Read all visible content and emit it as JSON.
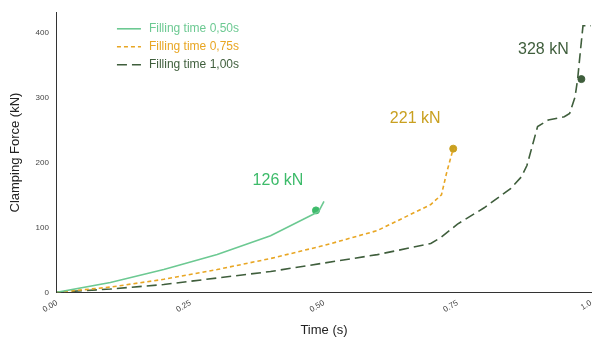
{
  "chart_data": {
    "type": "line",
    "x_label": "Time (s)",
    "y_label": "Clamping Force (kN)",
    "xlim": [
      0,
      1.0
    ],
    "ylim": [
      0,
      430
    ],
    "xticks": [
      {
        "value": 0,
        "label": "0.00"
      },
      {
        "value": 0.25,
        "label": "0.25"
      },
      {
        "value": 0.5,
        "label": "0.50"
      },
      {
        "value": 0.75,
        "label": "0.75"
      },
      {
        "value": 1.0,
        "label": "1.0"
      }
    ],
    "yticks": [
      0,
      100,
      200,
      300,
      400
    ],
    "grid": false,
    "legend": "upper left",
    "series": [
      {
        "name": "Filling time 0,50s",
        "color": "#6cc992",
        "line_style": "solid",
        "x": [
          0,
          0.1,
          0.2,
          0.3,
          0.4,
          0.48,
          0.49,
          0.5
        ],
        "values": [
          0,
          15,
          35,
          58,
          87,
          120,
          124,
          140
        ]
      },
      {
        "name": "Filling time 0,75s",
        "color": "#e8a623",
        "line_style": "dashed",
        "x": [
          0,
          0.1,
          0.2,
          0.3,
          0.4,
          0.5,
          0.6,
          0.7,
          0.72,
          0.73,
          0.74,
          0.745
        ],
        "values": [
          0,
          8,
          20,
          35,
          52,
          72,
          95,
          135,
          150,
          185,
          215,
          221
        ]
      },
      {
        "name": "Filling time 1,00s",
        "color": "#3f5e3c",
        "line_style": "long_dashed",
        "x": [
          0,
          0.1,
          0.2,
          0.3,
          0.4,
          0.5,
          0.6,
          0.7,
          0.72,
          0.75,
          0.8,
          0.85,
          0.87,
          0.88,
          0.9,
          0.92,
          0.95,
          0.96,
          0.97,
          0.975,
          0.98,
          0.985,
          1.0
        ],
        "values": [
          0,
          5,
          12,
          22,
          32,
          45,
          58,
          75,
          85,
          105,
          130,
          160,
          178,
          195,
          255,
          265,
          270,
          275,
          300,
          328,
          370,
          410,
          410
        ]
      }
    ],
    "annotations": [
      {
        "text": "126 kN",
        "x": 0.485,
        "y": 126,
        "color": "#3dbb6a",
        "marker": "circle"
      },
      {
        "text": "221 kN",
        "x": 0.742,
        "y": 221,
        "color": "#c9a020",
        "marker": "circle"
      },
      {
        "text": "328 kN",
        "x": 0.982,
        "y": 328,
        "color": "#3f5e3c",
        "marker": "circle"
      }
    ]
  }
}
